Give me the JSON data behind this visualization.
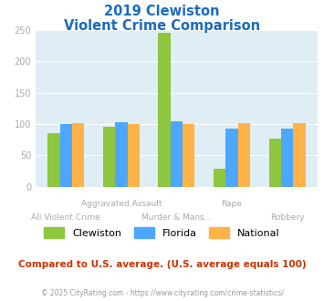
{
  "title_line1": "2019 Clewiston",
  "title_line2": "Violent Crime Comparison",
  "categories": [
    "All Violent Crime",
    "Aggravated Assault",
    "Murder & Mans...",
    "Rape",
    "Robbery"
  ],
  "xtick_row1": [
    "",
    "Aggravated Assault",
    "",
    "Rape",
    ""
  ],
  "xtick_row2": [
    "All Violent Crime",
    "",
    "Murder & Mans...",
    "",
    "Robbery"
  ],
  "series": {
    "Clewiston": [
      85,
      95,
      245,
      29,
      77
    ],
    "Florida": [
      100,
      103,
      105,
      92,
      92
    ],
    "National": [
      101,
      100,
      100,
      101,
      101
    ]
  },
  "colors": {
    "Clewiston": "#8dc63f",
    "Florida": "#4da6ff",
    "National": "#ffb347"
  },
  "ylim": [
    0,
    250
  ],
  "yticks": [
    0,
    50,
    100,
    150,
    200,
    250
  ],
  "footnote": "Compared to U.S. average. (U.S. average equals 100)",
  "copyright": "© 2025 CityRating.com - https://www.cityrating.com/crime-statistics/",
  "bg_color": "#deeef4",
  "title_color": "#1a6bbf",
  "footnote_color": "#cc3300",
  "copyright_color": "#999999",
  "xticklabel_color": "#aaaaaa",
  "yticklabel_color": "#aaaaaa",
  "bar_width": 0.22
}
